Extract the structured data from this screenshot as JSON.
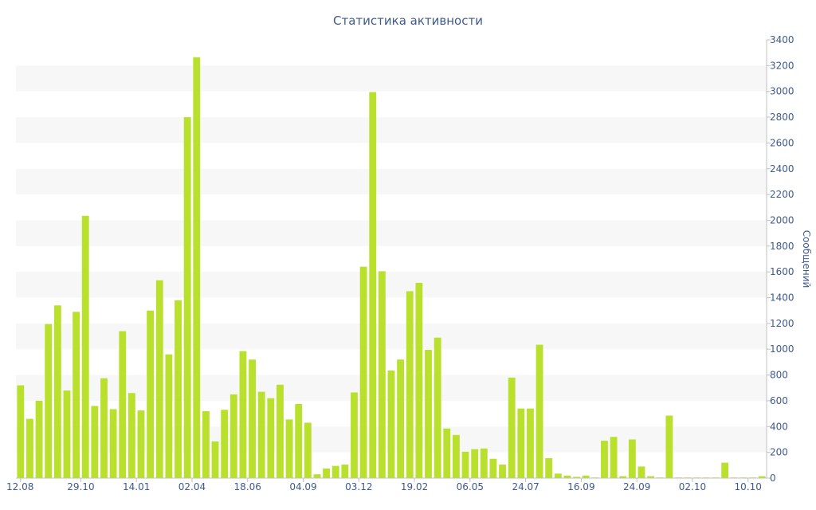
{
  "chart_data": {
    "type": "bar",
    "title": "Статистика активности",
    "xlabel": "",
    "ylabel": "Сообщений",
    "y_axis_side": "right",
    "ylim": [
      0,
      3400
    ],
    "y_ticks": [
      0,
      200,
      400,
      600,
      800,
      1000,
      1200,
      1400,
      1600,
      1800,
      2000,
      2200,
      2400,
      2600,
      2800,
      3000,
      3200,
      3400
    ],
    "grid": "alternating horizontal bands",
    "bar_color": "#b9e02c",
    "band_color": "#f7f7f7",
    "text_color": "#3e5a8c",
    "x_tick_labels": [
      {
        "label": "12.08",
        "index": 0
      },
      {
        "label": "29.10",
        "index": 6.5
      },
      {
        "label": "14.01",
        "index": 12.5
      },
      {
        "label": "02.04",
        "index": 18.5
      },
      {
        "label": "18.06",
        "index": 24.5
      },
      {
        "label": "04.09",
        "index": 30.5
      },
      {
        "label": "03.12",
        "index": 36.5
      },
      {
        "label": "19.02",
        "index": 42.5
      },
      {
        "label": "06.05",
        "index": 48.5
      },
      {
        "label": "24.07",
        "index": 54.5
      },
      {
        "label": "16.09",
        "index": 60.5
      },
      {
        "label": "24.09",
        "index": 66.5
      },
      {
        "label": "02.10",
        "index": 72.5
      },
      {
        "label": "10.10",
        "index": 78.5
      }
    ],
    "values": [
      720,
      460,
      600,
      1195,
      1340,
      680,
      1290,
      2035,
      560,
      775,
      535,
      1140,
      660,
      525,
      1300,
      1535,
      960,
      1380,
      2800,
      3265,
      520,
      285,
      530,
      650,
      985,
      920,
      670,
      620,
      725,
      455,
      575,
      430,
      30,
      75,
      95,
      105,
      665,
      1640,
      2995,
      1605,
      835,
      920,
      1450,
      1515,
      995,
      1090,
      385,
      335,
      205,
      225,
      230,
      150,
      105,
      780,
      540,
      540,
      1035,
      155,
      35,
      20,
      10,
      20,
      5,
      290,
      320,
      15,
      300,
      90,
      15,
      5,
      485,
      5,
      5,
      5,
      5,
      5,
      120,
      5,
      5,
      5,
      15
    ]
  }
}
